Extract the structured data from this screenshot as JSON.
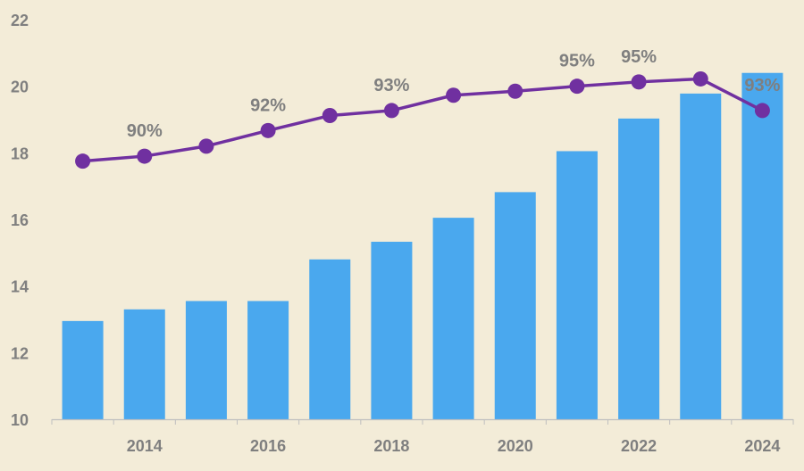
{
  "chart_data": {
    "type": "bar",
    "x": [
      2013,
      2014,
      2015,
      2016,
      2017,
      2018,
      2019,
      2020,
      2021,
      2022,
      2023,
      2024
    ],
    "x_tick_labels": [
      "2014",
      "2016",
      "2018",
      "2020",
      "2022",
      "2024"
    ],
    "y_tick_labels": [
      "10",
      "12",
      "14",
      "16",
      "18",
      "20",
      "22"
    ],
    "ylim": [
      10,
      22
    ],
    "title": "",
    "xlabel": "",
    "ylabel": "",
    "grid": false,
    "legend": "none",
    "series": [
      {
        "type": "bar",
        "color": "#4AA8EE",
        "values": [
          12.95,
          13.3,
          13.55,
          13.55,
          14.8,
          15.33,
          16.05,
          16.82,
          18.05,
          19.03,
          19.78,
          20.4
        ]
      },
      {
        "type": "line",
        "color": "#7030A0",
        "values": [
          17.75,
          17.9,
          18.2,
          18.67,
          19.12,
          19.27,
          19.73,
          19.85,
          20.0,
          20.13,
          20.22,
          19.27
        ],
        "data_labels": [
          {
            "index": 1,
            "text": "90%"
          },
          {
            "index": 3,
            "text": "92%"
          },
          {
            "index": 5,
            "text": "93%"
          },
          {
            "index": 8,
            "text": "95%"
          },
          {
            "index": 9,
            "text": "95%"
          },
          {
            "index": 11,
            "text": "93%"
          }
        ]
      }
    ]
  }
}
